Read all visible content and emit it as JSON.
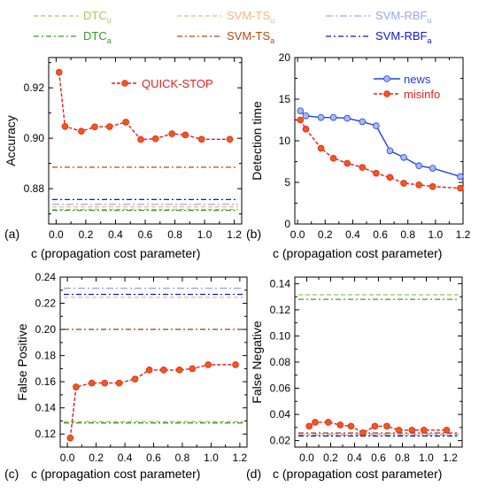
{
  "legend": [
    {
      "label": "DTC",
      "sub": "u",
      "color": "#9ccc5a",
      "dash": "5,3",
      "row": 0,
      "col": 0
    },
    {
      "label": "SVM-TS",
      "sub": "u",
      "color": "#f0b486",
      "dash": "5,3",
      "row": 0,
      "col": 1
    },
    {
      "label": "SVM-RBF",
      "sub": "u",
      "color": "#9aa6f0",
      "dash": "8,3,2,3",
      "row": 0,
      "col": 2
    },
    {
      "label": "DTC",
      "sub": "a",
      "color": "#3a9a2a",
      "dash": "6,3,2,3",
      "row": 1,
      "col": 0
    },
    {
      "label": "SVM-TS",
      "sub": "a",
      "color": "#b04a10",
      "dash": "6,3,2,3",
      "row": 1,
      "col": 1
    },
    {
      "label": "SVM-RBF",
      "sub": "a",
      "color": "#1018d0",
      "dash": "6,3,2,3",
      "row": 1,
      "col": 2
    }
  ],
  "chart_data": [
    {
      "panel": "(a)",
      "type": "line",
      "xlabel": "c (propagation cost parameter)",
      "ylabel": "Accuracy",
      "xlim": [
        -0.05,
        1.25
      ],
      "ylim": [
        0.866,
        0.932
      ],
      "xticks": [
        "0.0",
        "0.2",
        "0.4",
        "0.6",
        "0.8",
        "1.0",
        "1.2"
      ],
      "yticks": [
        0.88,
        0.9,
        0.92
      ],
      "ytick_labels": [
        "0.88",
        "0.90",
        "0.92"
      ],
      "yminor": [
        0.87,
        0.89,
        0.91,
        0.93
      ],
      "baselines": [
        {
          "name": "DTC_u",
          "y": 0.8718,
          "color": "#9ccc5a",
          "dash": "5,3"
        },
        {
          "name": "DTC_a",
          "y": 0.8714,
          "color": "#3a9a2a",
          "dash": "6,3,2,3"
        },
        {
          "name": "SVM-TS_u",
          "y": 0.8728,
          "color": "#f0b486",
          "dash": "5,3"
        },
        {
          "name": "SVM-TS_a",
          "y": 0.8885,
          "color": "#b04a10",
          "dash": "6,3,2,3"
        },
        {
          "name": "SVM-RBF_u",
          "y": 0.8738,
          "color": "#9aa6f0",
          "dash": "8,3,2,3"
        },
        {
          "name": "SVM-RBF_a",
          "y": 0.8757,
          "color": "#1018d0",
          "dash": "6,3,2,3"
        }
      ],
      "series": [
        {
          "name": "QUICK-STOP",
          "color": "#f05a14",
          "line": "#e02020",
          "x": [
            0.02,
            0.06,
            0.17,
            0.26,
            0.36,
            0.47,
            0.57,
            0.67,
            0.78,
            0.87,
            0.98,
            1.17
          ],
          "y": [
            0.9262,
            0.9047,
            0.9028,
            0.9045,
            0.9046,
            0.9064,
            0.8995,
            0.8998,
            0.9018,
            0.9013,
            0.8996,
            0.8996
          ]
        }
      ],
      "legend_labels": [
        "QUICK-STOP"
      ]
    },
    {
      "panel": "(b)",
      "type": "line",
      "xlabel": "c (propagation cost parameter)",
      "ylabel": "Detection time",
      "xlim": [
        -0.02,
        1.2
      ],
      "ylim": [
        0,
        20
      ],
      "xticks": [
        "0.0",
        "0.2",
        "0.4",
        "0.6",
        "0.8",
        "1.0",
        "1.2"
      ],
      "yticks": [
        0,
        5,
        10,
        15,
        20
      ],
      "ytick_labels": [
        "0",
        "5",
        "10",
        "15",
        "20"
      ],
      "yminor": [
        2.5,
        7.5,
        12.5,
        17.5
      ],
      "series": [
        {
          "name": "news",
          "color": "#a8b8f0",
          "line": "#2040e0",
          "x": [
            0.02,
            0.06,
            0.17,
            0.26,
            0.36,
            0.47,
            0.57,
            0.67,
            0.77,
            0.88,
            0.98,
            1.18
          ],
          "y": [
            13.6,
            13.0,
            12.8,
            12.8,
            12.7,
            12.3,
            11.8,
            8.8,
            8.0,
            7.0,
            6.7,
            5.7
          ]
        },
        {
          "name": "misinfo",
          "color": "#f05a14",
          "line": "#e02020",
          "x": [
            0.02,
            0.06,
            0.17,
            0.26,
            0.36,
            0.47,
            0.57,
            0.67,
            0.77,
            0.88,
            0.98,
            1.18
          ],
          "y": [
            12.5,
            11.4,
            9.1,
            7.9,
            7.3,
            6.8,
            6.1,
            5.6,
            4.9,
            4.7,
            4.5,
            4.3
          ]
        }
      ],
      "legend_labels": [
        "news",
        "misinfo"
      ]
    },
    {
      "panel": "(c)",
      "type": "line",
      "xlabel": "c (propagation cost parameter)",
      "ylabel": "False Positive",
      "xlim": [
        -0.05,
        1.25
      ],
      "ylim": [
        0.11,
        0.24
      ],
      "xticks": [
        "0.0",
        "0.2",
        "0.4",
        "0.6",
        "0.8",
        "1.0",
        "1.2"
      ],
      "yticks": [
        0.12,
        0.14,
        0.16,
        0.18,
        0.2,
        0.22,
        0.24
      ],
      "ytick_labels": [
        "0.12",
        "0.14",
        "0.16",
        "0.18",
        "0.20",
        "0.22",
        "0.24"
      ],
      "yminor": [
        0.13,
        0.15,
        0.17,
        0.19,
        0.21,
        0.23
      ],
      "baselines": [
        {
          "name": "DTC_u",
          "y": 0.1295,
          "color": "#9ccc5a",
          "dash": "5,3"
        },
        {
          "name": "DTC_a",
          "y": 0.1285,
          "color": "#3a9a2a",
          "dash": "6,3,2,3"
        },
        {
          "name": "SVM-TS_u",
          "y": 0.2245,
          "color": "#f0b486",
          "dash": "5,3"
        },
        {
          "name": "SVM-TS_a",
          "y": 0.2,
          "color": "#b04a10",
          "dash": "6,3,2,3"
        },
        {
          "name": "SVM-RBF_u",
          "y": 0.2315,
          "color": "#9aa6f0",
          "dash": "8,3,2,3"
        },
        {
          "name": "SVM-RBF_a",
          "y": 0.2268,
          "color": "#1018d0",
          "dash": "6,3,2,3"
        }
      ],
      "series": [
        {
          "name": "QUICK-STOP",
          "color": "#f05a14",
          "line": "#e02020",
          "x": [
            0.02,
            0.06,
            0.17,
            0.26,
            0.36,
            0.47,
            0.57,
            0.67,
            0.78,
            0.87,
            0.98,
            1.17
          ],
          "y": [
            0.117,
            0.156,
            0.159,
            0.159,
            0.159,
            0.162,
            0.169,
            0.169,
            0.169,
            0.17,
            0.173,
            0.173
          ]
        }
      ],
      "legend_labels": []
    },
    {
      "panel": "(d)",
      "type": "line",
      "xlabel": "c (propagation cost parameter)",
      "ylabel": "False Negative",
      "xlim": [
        -0.1,
        1.3
      ],
      "ylim": [
        0.015,
        0.145
      ],
      "xticks": [
        "0.0",
        "0.2",
        "0.4",
        "0.6",
        "0.8",
        "1.0",
        "1.2"
      ],
      "yticks": [
        0.02,
        0.04,
        0.06,
        0.08,
        0.1,
        0.12,
        0.14
      ],
      "ytick_labels": [
        "0.02",
        "0.04",
        "0.06",
        "0.08",
        "0.10",
        "0.12",
        "0.14"
      ],
      "yminor": [
        0.03,
        0.05,
        0.07,
        0.09,
        0.11,
        0.13
      ],
      "baselines": [
        {
          "name": "DTC_u",
          "y": 0.1315,
          "color": "#9ccc5a",
          "dash": "5,3"
        },
        {
          "name": "DTC_a",
          "y": 0.128,
          "color": "#3a9a2a",
          "dash": "6,3,2,3"
        },
        {
          "name": "SVM-TS_u",
          "y": 0.0252,
          "color": "#f0b486",
          "dash": "5,3"
        },
        {
          "name": "SVM-TS_a",
          "y": 0.0258,
          "color": "#b04a10",
          "dash": "6,3,2,3"
        },
        {
          "name": "SVM-RBF_u",
          "y": 0.0242,
          "color": "#9aa6f0",
          "dash": "8,3,2,3"
        },
        {
          "name": "SVM-RBF_a",
          "y": 0.0235,
          "color": "#1018d0",
          "dash": "6,3,2,3"
        }
      ],
      "series": [
        {
          "name": "QUICK-STOP",
          "color": "#f05a14",
          "line": "#e02020",
          "x": [
            0.02,
            0.07,
            0.18,
            0.28,
            0.37,
            0.47,
            0.57,
            0.67,
            0.77,
            0.88,
            0.98,
            1.17
          ],
          "y": [
            0.031,
            0.034,
            0.034,
            0.032,
            0.031,
            0.026,
            0.031,
            0.031,
            0.028,
            0.028,
            0.028,
            0.028
          ]
        }
      ],
      "legend_labels": []
    }
  ]
}
